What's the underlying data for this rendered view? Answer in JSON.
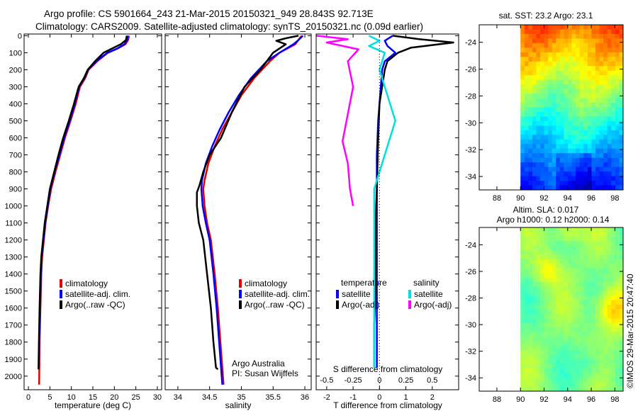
{
  "title": {
    "line1": "Argo profile: CS 5901664_243 21-Mar-2015 20150321_949 28.843S 92.713E",
    "line2": "Climatology: CARS2009. Satellite-adjusted climatology: synTS_20150321.nc (0.09d earlier)"
  },
  "colors": {
    "climatology": "#e00000",
    "satellite": "#0000ff",
    "argo": "#000000",
    "sat_salinity": "#00e0e0",
    "argo_salinity_adj": "#ff00ff"
  },
  "chart_data": [
    {
      "type": "line",
      "id": "temperature",
      "xlabel": "temperature (deg C)",
      "xlim": [
        -1,
        31
      ],
      "xticks": [
        0,
        5,
        10,
        15,
        20,
        25,
        30
      ],
      "ylim": [
        2080,
        -10
      ],
      "yticks": [
        0,
        100,
        200,
        300,
        400,
        500,
        600,
        700,
        800,
        900,
        1000,
        1100,
        1200,
        1300,
        1400,
        1500,
        1600,
        1700,
        1800,
        1900,
        2000
      ],
      "legend": [
        "climatology",
        "satellite-adj. clim.",
        "Argo(..raw -QC)"
      ],
      "series": [
        {
          "name": "climatology",
          "color": "#e00000",
          "x": [
            23.4,
            23.2,
            22.6,
            20.8,
            18.5,
            16,
            14,
            13.2,
            12,
            11,
            9.8,
            8.5,
            7.4,
            6.3,
            5.3,
            4.6,
            4,
            3.6,
            3.2,
            3,
            2.8,
            2.6,
            2.5
          ],
          "y": [
            0,
            25,
            50,
            75,
            100,
            150,
            200,
            250,
            300,
            400,
            500,
            600,
            700,
            800,
            900,
            1000,
            1100,
            1200,
            1300,
            1400,
            1600,
            1800,
            2050
          ]
        },
        {
          "name": "satellite-adj. clim.",
          "color": "#0000ff",
          "x": [
            23.1,
            23,
            22.3,
            20.7,
            18.4,
            15.8,
            13.9,
            13,
            11.8,
            10.8,
            9.6,
            8.3,
            7.2,
            6.1,
            5.1,
            4.5,
            3.9,
            3.5,
            3.1,
            2.9,
            2.7,
            2.5,
            2.4
          ],
          "y": [
            0,
            25,
            50,
            75,
            100,
            150,
            200,
            250,
            300,
            400,
            500,
            600,
            700,
            800,
            900,
            1000,
            1100,
            1200,
            1300,
            1400,
            1600,
            1800,
            1960
          ]
        },
        {
          "name": "Argo(..raw -QC)",
          "color": "#000000",
          "x": [
            22.9,
            22.7,
            21.5,
            19.5,
            17.5,
            15.5,
            13.8,
            12.9,
            11.7,
            10.6,
            9.4,
            8.1,
            7,
            6,
            5,
            4.4,
            3.8,
            3.4,
            3,
            2.8,
            2.6,
            2.45,
            2.35
          ],
          "y": [
            0,
            25,
            50,
            75,
            100,
            150,
            200,
            250,
            300,
            400,
            500,
            600,
            700,
            800,
            900,
            1000,
            1100,
            1200,
            1300,
            1400,
            1600,
            1800,
            1960
          ]
        }
      ]
    },
    {
      "type": "line",
      "id": "salinity",
      "xlabel": "salinity",
      "xlim": [
        33.8,
        36.1
      ],
      "xticks": [
        34,
        34.5,
        35,
        35.5,
        36
      ],
      "xticklabels": [
        "34",
        "34.5",
        "35",
        "35.5",
        "36"
      ],
      "ylim": [
        2080,
        -10
      ],
      "legend": [
        "climatology",
        "satellite-adj. clim.",
        "Argo(..raw -QC)"
      ],
      "annotation": [
        "Argo Australia",
        "PI: Susan Wijffels"
      ],
      "series": [
        {
          "name": "climatology",
          "color": "#e00000",
          "x": [
            35.95,
            35.9,
            35.85,
            35.6,
            35.45,
            35.2,
            35,
            34.85,
            34.7,
            34.58,
            34.48,
            34.42,
            34.4,
            34.42,
            34.46,
            34.52,
            34.58,
            34.63,
            34.67,
            34.7,
            34.72
          ],
          "y": [
            0,
            25,
            50,
            100,
            150,
            250,
            350,
            450,
            550,
            650,
            750,
            850,
            900,
            1000,
            1100,
            1200,
            1400,
            1600,
            1800,
            1950,
            2050
          ]
        },
        {
          "name": "satellite-adj. clim.",
          "color": "#0000ff",
          "x": [
            35.97,
            35.9,
            35.82,
            35.6,
            35.4,
            35.15,
            34.96,
            34.8,
            34.66,
            34.54,
            34.44,
            34.38,
            34.37,
            34.39,
            34.44,
            34.5,
            34.56,
            34.61,
            34.65,
            34.68,
            34.7
          ],
          "y": [
            0,
            25,
            50,
            100,
            150,
            250,
            350,
            450,
            550,
            650,
            750,
            850,
            900,
            1000,
            1100,
            1200,
            1400,
            1600,
            1800,
            1950,
            2050
          ]
        },
        {
          "name": "Argo(..raw -QC)",
          "color": "#000000",
          "x": [
            35.9,
            35.7,
            35.55,
            35.7,
            35.5,
            35.3,
            35.05,
            34.85,
            34.68,
            34.5,
            34.4,
            34.34,
            34.3,
            34.3,
            34.33,
            34.4,
            34.46,
            34.52,
            34.56,
            34.6,
            34.63
          ],
          "y": [
            0,
            15,
            30,
            50,
            100,
            200,
            300,
            450,
            600,
            700,
            800,
            880,
            920,
            1000,
            1100,
            1200,
            1400,
            1600,
            1800,
            1950,
            1960
          ]
        }
      ]
    },
    {
      "type": "line",
      "id": "difference",
      "xlabel": "T difference from climatology",
      "xlabel_top": "S difference from climatology",
      "xlim": [
        -2.4,
        3
      ],
      "xticks": [
        -2,
        -1,
        0,
        1,
        2
      ],
      "xticks_top": [
        -0.5,
        -0.25,
        0,
        0.25,
        0.5
      ],
      "xticklabels_top": [
        "-0.5",
        "-0.25",
        "0",
        "0.25",
        "0.5"
      ],
      "ylim": [
        2080,
        -10
      ],
      "legend_left_title": "temperature",
      "legend_right_title": "salinity",
      "legend": [
        "satellite",
        "Argo(-adj)",
        "satellite",
        "Argo(-adj)"
      ],
      "series": [
        {
          "name": "temperature satellite",
          "color": "#0000ff",
          "x": [
            0.5,
            0.2,
            0.3,
            0.6,
            0.2,
            0.1,
            0.05,
            0,
            -0.05,
            -0.1,
            -0.1,
            -0.1,
            -0.1,
            -0.1,
            -0.1,
            -0.1
          ],
          "y": [
            0,
            30,
            60,
            100,
            150,
            200,
            300,
            400,
            500,
            700,
            900,
            1100,
            1300,
            1500,
            1700,
            1950
          ]
        },
        {
          "name": "temperature Argo(-adj)",
          "color": "#000000",
          "x": [
            0.5,
            1.5,
            2.8,
            1.2,
            0.7,
            0.3,
            0.2,
            0.1,
            0,
            -0.05,
            -0.1,
            -0.15,
            -0.15,
            -0.15,
            -0.2,
            -0.2
          ],
          "y": [
            0,
            20,
            40,
            70,
            100,
            150,
            200,
            300,
            400,
            600,
            900,
            1100,
            1300,
            1500,
            1700,
            1950
          ]
        },
        {
          "name": "salinity satellite",
          "color": "#00e0e0",
          "x": [
            -0.1,
            0,
            -0.1,
            0.05,
            0,
            0.05,
            0.1,
            0.15,
            0.1,
            0.05,
            0,
            -0.05,
            -0.05,
            -0.05,
            -0.05
          ],
          "y": [
            0,
            30,
            60,
            100,
            200,
            300,
            400,
            500,
            600,
            700,
            800,
            900,
            1100,
            1400,
            1950
          ]
        },
        {
          "name": "salinity Argo(-adj)",
          "color": "#ff00ff",
          "x": [
            -0.6,
            -0.3,
            -0.5,
            -0.2,
            -0.3,
            -0.25,
            -0.35,
            -0.3,
            -0.28,
            -0.25
          ],
          "y": [
            0,
            20,
            40,
            80,
            150,
            300,
            620,
            750,
            900,
            1000
          ]
        }
      ]
    },
    {
      "type": "heatmap",
      "id": "sst-map",
      "title": "sat. SST: 23.2  Argo: 23.1",
      "xlim": [
        86.5,
        98.7
      ],
      "xticks": [
        88,
        90,
        92,
        94,
        96,
        98
      ],
      "ylim": [
        -35,
        -22.7
      ],
      "yticks": [
        -24,
        -26,
        -28,
        -30,
        -32,
        -34
      ],
      "data_region": {
        "lon": [
          90,
          98.7
        ],
        "lat": [
          -35,
          -22.7
        ]
      }
    },
    {
      "type": "heatmap",
      "id": "sla-map",
      "title_line1": "Altim. SLA: 0.017",
      "title_line2": "Argo h1000: 0.12 h2000: 0.14",
      "xlim": [
        86.5,
        98.7
      ],
      "xticks": [
        88,
        90,
        92,
        94,
        96,
        98
      ],
      "ylim": [
        -35,
        -22.7
      ],
      "yticks": [
        -24,
        -26,
        -28,
        -30,
        -32,
        -34
      ],
      "data_region": {
        "lon": [
          90,
          98.7
        ],
        "lat": [
          -35,
          -22.7
        ]
      }
    }
  ],
  "credit": "©IMOS 29-Mar-2015 20:47:40"
}
